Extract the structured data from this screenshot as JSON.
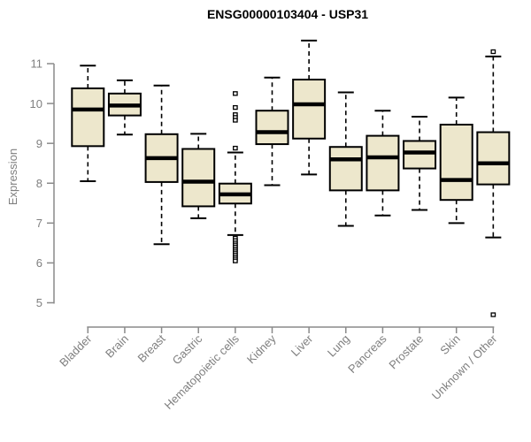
{
  "chart_data": {
    "type": "boxplot",
    "title": "ENSG00000103404 - USP31",
    "xlabel": "",
    "ylabel": "Expression",
    "ylim": [
      5,
      11
    ],
    "yticks": [
      5,
      6,
      7,
      8,
      9,
      10,
      11
    ],
    "grid": false,
    "legend": "none",
    "categories": [
      "Bladder",
      "Brain",
      "Breast",
      "Gastric",
      "Hematopoietic cells",
      "Kidney",
      "Liver",
      "Lung",
      "Pancreas",
      "Prostate",
      "Skin",
      "Unknown / Other"
    ],
    "series": [
      {
        "label": "Bladder",
        "whisker_low": 8.05,
        "q1": 8.93,
        "median": 9.85,
        "q3": 10.38,
        "whisker_high": 10.95,
        "outliers": []
      },
      {
        "label": "Brain",
        "whisker_low": 9.22,
        "q1": 9.7,
        "median": 9.95,
        "q3": 10.25,
        "whisker_high": 10.58,
        "outliers": []
      },
      {
        "label": "Breast",
        "whisker_low": 6.47,
        "q1": 8.03,
        "median": 8.63,
        "q3": 9.23,
        "whisker_high": 10.45,
        "outliers": []
      },
      {
        "label": "Gastric",
        "whisker_low": 7.12,
        "q1": 7.42,
        "median": 8.04,
        "q3": 8.86,
        "whisker_high": 9.24,
        "outliers": []
      },
      {
        "label": "Hematopoietic cells",
        "whisker_low": 6.7,
        "q1": 7.49,
        "median": 7.72,
        "q3": 7.99,
        "whisker_high": 8.77,
        "outliers": [
          10.25,
          9.9,
          9.72,
          9.65,
          9.58,
          8.88,
          6.62,
          6.56,
          6.5,
          6.45,
          6.4,
          6.35,
          6.3,
          6.25,
          6.2,
          6.15,
          6.1,
          6.05
        ]
      },
      {
        "label": "Kidney",
        "whisker_low": 7.95,
        "q1": 8.98,
        "median": 9.28,
        "q3": 9.82,
        "whisker_high": 10.65,
        "outliers": []
      },
      {
        "label": "Liver",
        "whisker_low": 8.22,
        "q1": 9.12,
        "median": 9.98,
        "q3": 10.6,
        "whisker_high": 11.58,
        "outliers": []
      },
      {
        "label": "Lung",
        "whisker_low": 6.93,
        "q1": 7.82,
        "median": 8.6,
        "q3": 8.91,
        "whisker_high": 10.28,
        "outliers": []
      },
      {
        "label": "Pancreas",
        "whisker_low": 7.19,
        "q1": 7.82,
        "median": 8.65,
        "q3": 9.19,
        "whisker_high": 9.82,
        "outliers": []
      },
      {
        "label": "Prostate",
        "whisker_low": 7.33,
        "q1": 8.37,
        "median": 8.77,
        "q3": 9.06,
        "whisker_high": 9.67,
        "outliers": []
      },
      {
        "label": "Skin",
        "whisker_low": 7.0,
        "q1": 7.58,
        "median": 8.08,
        "q3": 9.47,
        "whisker_high": 10.15,
        "outliers": []
      },
      {
        "label": "Unknown / Other",
        "whisker_low": 6.64,
        "q1": 7.97,
        "median": 8.5,
        "q3": 9.28,
        "whisker_high": 11.18,
        "outliers": [
          11.3,
          4.7
        ]
      }
    ],
    "colors": {
      "box_fill": "#ede7cc",
      "box_stroke": "#000000",
      "median": "#000000",
      "whisker": "#000000",
      "axis": "#8a8a8a",
      "tick_label": "#7f7f7f",
      "title": "#000000",
      "outlier_stroke": "#000000",
      "background": "#ffffff"
    }
  }
}
